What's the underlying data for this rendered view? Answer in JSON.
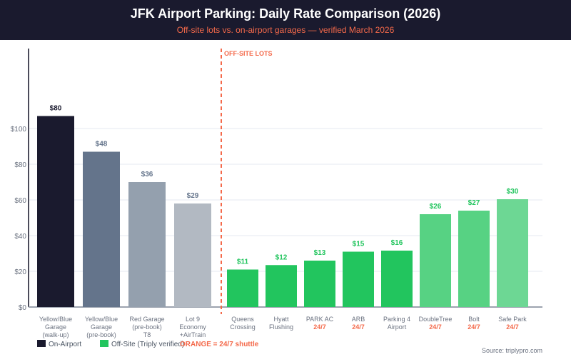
{
  "header": {
    "title": "JFK Airport Parking: Daily Rate Comparison (2026)",
    "subtitle": "Off-site lots vs. on-airport garages — verified March 2026"
  },
  "chart_data": {
    "type": "bar",
    "title": "JFK Airport Parking: Daily Rate Comparison (2026)",
    "subtitle": "Off-site lots vs. on-airport garages — verified March 2026",
    "ylim": [
      0,
      120
    ],
    "yticks": [
      0,
      20,
      40,
      60,
      80,
      100
    ],
    "ytick_labels": [
      "$0",
      "$20",
      "$40",
      "$60",
      "$80",
      "$100"
    ],
    "grid": true,
    "divider_label": "OFF-SITE LOTS",
    "categories": [
      {
        "lines": [
          "Yellow/Blue",
          "Garage",
          "(walk-up)"
        ],
        "shuttle": "",
        "label": "$80",
        "value": 80,
        "bar_height": 107,
        "group": "on",
        "color": "#1a1a2e"
      },
      {
        "lines": [
          "Yellow/Blue",
          "Garage",
          "(pre-book)"
        ],
        "shuttle": "",
        "label": "$48",
        "value": 48,
        "bar_height": 87,
        "group": "on",
        "color": "#64748b"
      },
      {
        "lines": [
          "Red Garage",
          "(pre-book)",
          "T8"
        ],
        "shuttle": "",
        "label": "$36",
        "value": 36,
        "bar_height": 70,
        "group": "on",
        "color": "#94a0ae"
      },
      {
        "lines": [
          "Lot 9",
          "Economy",
          "+AirTrain"
        ],
        "shuttle": "",
        "label": "$29",
        "value": 29,
        "bar_height": 58,
        "group": "on",
        "color": "#b2b9c2"
      },
      {
        "lines": [
          "Queens",
          "Crossing"
        ],
        "shuttle": "",
        "label": "$11",
        "value": 11,
        "bar_height": 21,
        "group": "off",
        "color": "#22c55e"
      },
      {
        "lines": [
          "Hyatt",
          "Flushing"
        ],
        "shuttle": "",
        "label": "$12",
        "value": 12,
        "bar_height": 23.5,
        "group": "off",
        "color": "#22c55e"
      },
      {
        "lines": [
          "PARK AC"
        ],
        "shuttle": "24/7",
        "label": "$13",
        "value": 13,
        "bar_height": 26,
        "group": "off",
        "color": "#22c55e"
      },
      {
        "lines": [
          "ARB"
        ],
        "shuttle": "24/7",
        "label": "$15",
        "value": 15,
        "bar_height": 31,
        "group": "off",
        "color": "#22c55e"
      },
      {
        "lines": [
          "Parking 4",
          "Airport"
        ],
        "shuttle": "",
        "label": "$16",
        "value": 16,
        "bar_height": 31.6,
        "group": "off",
        "color": "#22c55e"
      },
      {
        "lines": [
          "DoubleTree"
        ],
        "shuttle": "24/7",
        "label": "$26",
        "value": 26,
        "bar_height": 52,
        "group": "off",
        "color": "#57d283"
      },
      {
        "lines": [
          "Bolt"
        ],
        "shuttle": "24/7",
        "label": "$27",
        "value": 27,
        "bar_height": 54,
        "group": "off",
        "color": "#57d283"
      },
      {
        "lines": [
          "Safe Park"
        ],
        "shuttle": "24/7",
        "label": "$30",
        "value": 30,
        "bar_height": 60.4,
        "group": "off",
        "color": "#6dd794"
      }
    ],
    "legend": [
      {
        "name": "On-Airport",
        "color": "#1a1a2e"
      },
      {
        "name": "Off-Site (Triply verified)",
        "color": "#22c55e"
      },
      {
        "name": "ORANGE = 24/7 shuttle",
        "color": "#f4694a"
      }
    ],
    "legend_placement": "bottom-left",
    "label_colors": {
      "on": "#64748b",
      "on_first": "#1a1a2e",
      "off": "#22c55e"
    },
    "accent": "#f4694a"
  },
  "source": "Source: triplypro.com"
}
